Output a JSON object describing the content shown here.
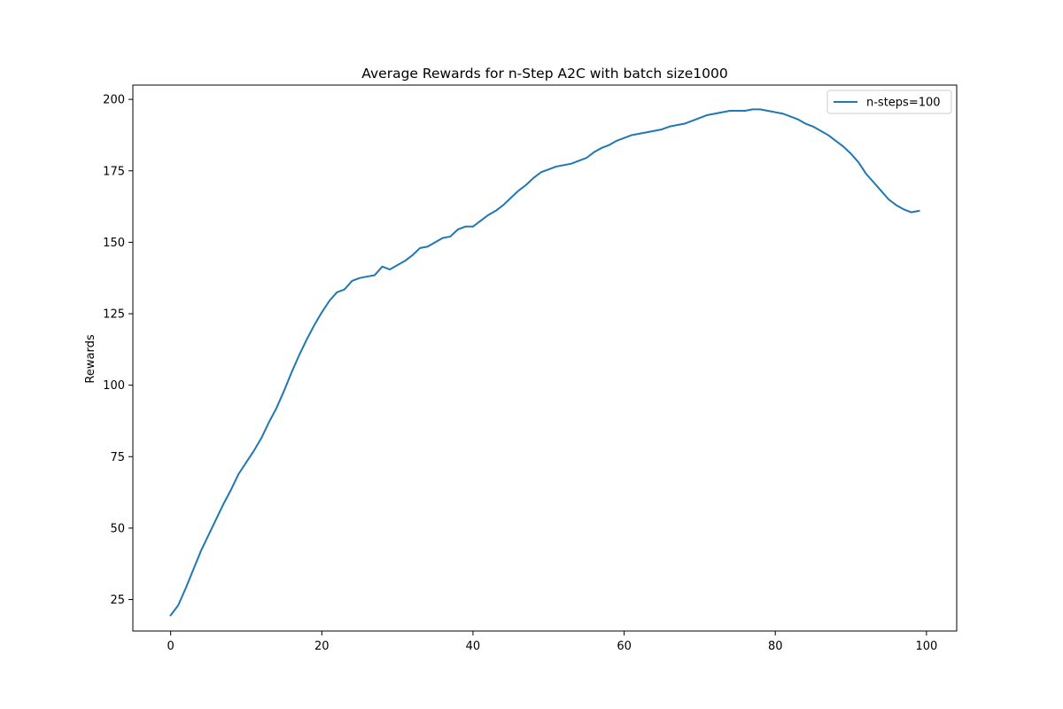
{
  "chart_data": {
    "type": "line",
    "title": "Average Rewards for n-Step A2C with batch size1000",
    "xlabel": "",
    "ylabel": "Rewards",
    "xlim": [
      -5,
      104
    ],
    "ylim": [
      14,
      205
    ],
    "xticks": [
      0,
      20,
      40,
      60,
      80,
      100
    ],
    "yticks": [
      25,
      50,
      75,
      100,
      125,
      150,
      175,
      200
    ],
    "grid": false,
    "legend_position": "top-right",
    "color": "#1f77b4",
    "series": [
      {
        "name": "n-steps=100",
        "x": [
          0,
          1,
          2,
          3,
          4,
          5,
          6,
          7,
          8,
          9,
          10,
          11,
          12,
          13,
          14,
          15,
          16,
          17,
          18,
          19,
          20,
          21,
          22,
          23,
          24,
          25,
          26,
          27,
          28,
          29,
          30,
          31,
          32,
          33,
          34,
          35,
          36,
          37,
          38,
          39,
          40,
          41,
          42,
          43,
          44,
          45,
          46,
          47,
          48,
          49,
          50,
          51,
          52,
          53,
          54,
          55,
          56,
          57,
          58,
          59,
          60,
          61,
          62,
          63,
          64,
          65,
          66,
          67,
          68,
          69,
          70,
          71,
          72,
          73,
          74,
          75,
          76,
          77,
          78,
          79,
          80,
          81,
          82,
          83,
          84,
          85,
          86,
          87,
          88,
          89,
          90,
          91,
          92,
          93,
          94,
          95,
          96,
          97,
          98,
          99
        ],
        "values": [
          19.5,
          23,
          29,
          35.5,
          42,
          47.5,
          53,
          58.5,
          63.5,
          69,
          73,
          77,
          81.5,
          87,
          92,
          98,
          104.5,
          110.5,
          116,
          121,
          125.5,
          129.5,
          132.5,
          133.5,
          136.5,
          137.5,
          138,
          138.5,
          141.5,
          140.5,
          142,
          143.5,
          145.5,
          148,
          148.5,
          150,
          151.5,
          152,
          154.5,
          155.5,
          155.5,
          157.5,
          159.5,
          161,
          163,
          165.5,
          168,
          170,
          172.5,
          174.5,
          175.5,
          176.5,
          177,
          177.5,
          178.5,
          179.5,
          181.5,
          183,
          184,
          185.5,
          186.5,
          187.5,
          188,
          188.5,
          189,
          189.5,
          190.5,
          191,
          191.5,
          192.5,
          193.5,
          194.5,
          195,
          195.5,
          196,
          196,
          196,
          196.5,
          196.5,
          196,
          195.5,
          195,
          194,
          193,
          191.5,
          190.5,
          189,
          187.5,
          185.5,
          183.5,
          181,
          178,
          174,
          171,
          168,
          165,
          163,
          161.5,
          160.5,
          161
        ]
      }
    ]
  }
}
